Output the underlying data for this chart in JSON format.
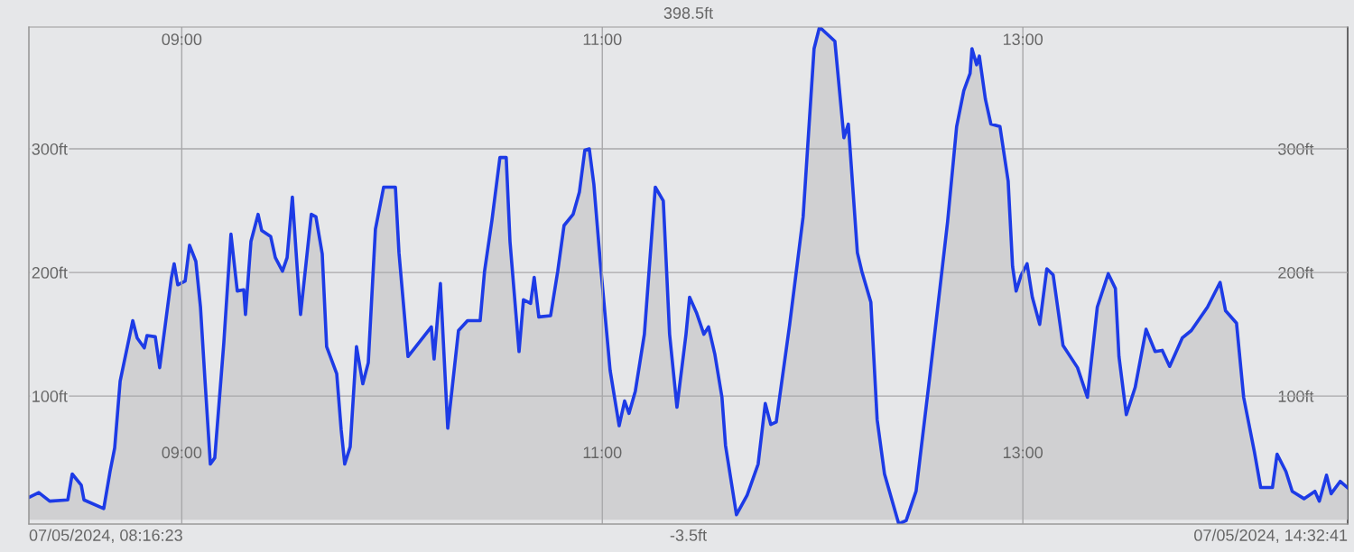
{
  "chart_data": {
    "type": "area",
    "x": [
      8.273,
      8.32,
      8.372,
      8.458,
      8.479,
      8.522,
      8.535,
      8.629,
      8.659,
      8.681,
      8.707,
      8.767,
      8.788,
      8.822,
      8.835,
      8.874,
      8.895,
      8.951,
      8.964,
      8.981,
      9.016,
      9.037,
      9.067,
      9.089,
      9.11,
      9.136,
      9.157,
      9.2,
      9.234,
      9.264,
      9.295,
      9.303,
      9.329,
      9.363,
      9.38,
      9.423,
      9.445,
      9.479,
      9.501,
      9.526,
      9.552,
      9.565,
      9.616,
      9.638,
      9.668,
      9.689,
      9.737,
      9.758,
      9.775,
      9.801,
      9.831,
      9.861,
      9.887,
      9.921,
      9.96,
      10.016,
      10.033,
      10.076,
      10.187,
      10.2,
      10.23,
      10.265,
      10.316,
      10.359,
      10.419,
      10.44,
      10.475,
      10.513,
      10.543,
      10.561,
      10.604,
      10.625,
      10.659,
      10.676,
      10.698,
      10.754,
      10.788,
      10.818,
      10.861,
      10.891,
      10.917,
      10.938,
      10.96,
      10.99,
      11.037,
      11.08,
      11.106,
      11.127,
      11.157,
      11.2,
      11.252,
      11.29,
      11.32,
      11.355,
      11.398,
      11.415,
      11.449,
      11.483,
      11.505,
      11.535,
      11.569,
      11.586,
      11.638,
      11.689,
      11.741,
      11.775,
      11.801,
      11.827,
      11.891,
      11.955,
      12.007,
      12.033,
      12.106,
      12.149,
      12.17,
      12.213,
      12.234,
      12.277,
      12.307,
      12.342,
      12.41,
      12.445,
      12.492,
      12.556,
      12.642,
      12.685,
      12.719,
      12.749,
      12.758,
      12.78,
      12.793,
      12.822,
      12.848,
      12.891,
      12.93,
      12.951,
      12.968,
      12.99,
      13.02,
      13.045,
      13.08,
      13.114,
      13.144,
      13.191,
      13.26,
      13.307,
      13.354,
      13.406,
      13.44,
      13.457,
      13.492,
      13.534,
      13.586,
      13.629,
      13.663,
      13.698,
      13.758,
      13.801,
      13.878,
      13.938,
      13.964,
      14.016,
      14.05,
      14.101,
      14.131,
      14.187,
      14.209,
      14.251,
      14.281,
      14.337,
      14.389,
      14.41,
      14.444,
      14.466,
      14.509,
      14.543
    ],
    "series": [
      {
        "color": "#1d3be6",
        "values": [
          18,
          22,
          15,
          16,
          37,
          28,
          16,
          9,
          39,
          58,
          112,
          161,
          147,
          139,
          149,
          148,
          123,
          196,
          207,
          190,
          193,
          222,
          209,
          172,
          114,
          45,
          50,
          143,
          231,
          185,
          186,
          166,
          225,
          247,
          234,
          229,
          212,
          201,
          212,
          261,
          196,
          166,
          247,
          245,
          215,
          140,
          118,
          73,
          45,
          59,
          140,
          110,
          127,
          235,
          269,
          269,
          216,
          132,
          156,
          130,
          191,
          74,
          153,
          161,
          161,
          201,
          242,
          293,
          293,
          225,
          136,
          178,
          175,
          196,
          164,
          165,
          201,
          238,
          247,
          265,
          299,
          300,
          271,
          209,
          121,
          76,
          96,
          86,
          104,
          150,
          269,
          258,
          150,
          91,
          150,
          180,
          167,
          150,
          156,
          134,
          99,
          60,
          4,
          20,
          45,
          94,
          77,
          79,
          158,
          245,
          381,
          398.5,
          387,
          309,
          320,
          216,
          201,
          176,
          81,
          37,
          -3.5,
          -0.7,
          23,
          114,
          241,
          318,
          347,
          361,
          381,
          368,
          375,
          340,
          320,
          318,
          274,
          205,
          185,
          197,
          207,
          180,
          158,
          203,
          198,
          141,
          123,
          99,
          172,
          199,
          187,
          132,
          85,
          107,
          154,
          136,
          137,
          124,
          147,
          153,
          172,
          192,
          169,
          159,
          99,
          55,
          26,
          26,
          53,
          39,
          23,
          17,
          23,
          15,
          36,
          21,
          31,
          26
        ]
      }
    ],
    "xlim": [
      8.273,
      14.5447
    ],
    "xticks": [
      {
        "value": 9,
        "label": "09:00"
      },
      {
        "value": 11,
        "label": "11:00"
      },
      {
        "value": 13,
        "label": "13:00"
      }
    ],
    "x2lim": [
      8.273,
      14.5447
    ],
    "x2ticks": [
      {
        "value": 9,
        "label": "09:00"
      },
      {
        "value": 11,
        "label": "11:00"
      },
      {
        "value": 13,
        "label": "13:00"
      }
    ],
    "ylim": [
      -3.5,
      398.5
    ],
    "yticks": [
      {
        "value": 100,
        "label": "100ft"
      },
      {
        "value": 200,
        "label": "200ft"
      },
      {
        "value": 300,
        "label": "300ft"
      }
    ],
    "y2lim": [
      -3.5,
      398.5
    ],
    "y2ticks": [
      {
        "value": 100,
        "label": "100ft"
      },
      {
        "value": 200,
        "label": "200ft"
      },
      {
        "value": 300,
        "label": "300ft"
      }
    ],
    "grid": true,
    "annotations": [
      "398.5ft",
      "-3.5ft",
      "07/05/2024, 08:16:23",
      "07/05/2024, 14:32:41"
    ]
  }
}
